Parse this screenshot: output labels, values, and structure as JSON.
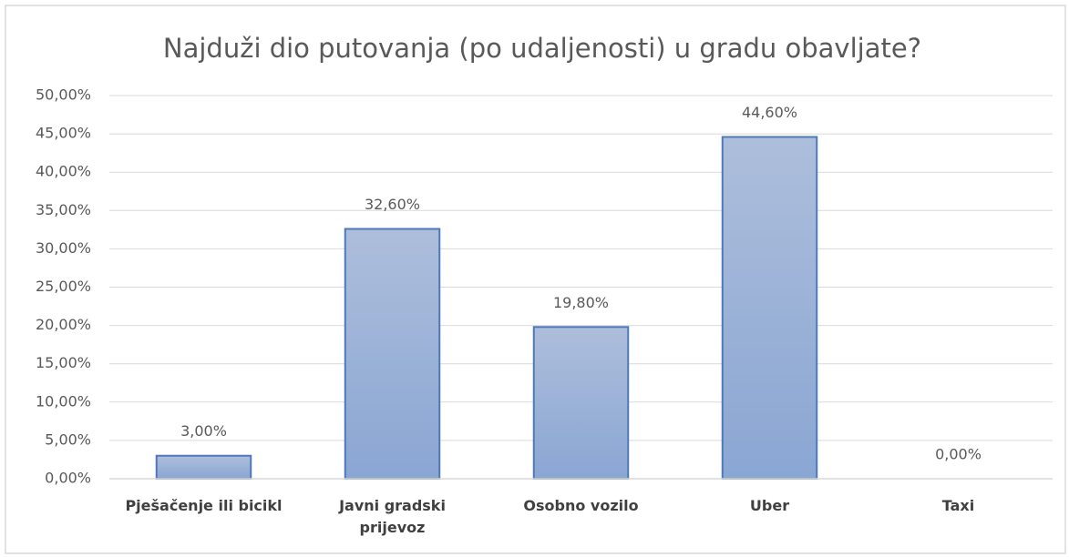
{
  "chart_data": {
    "type": "bar",
    "title": "Najduži dio putovanja (po udaljenosti) u gradu obavljate?",
    "categories": [
      "Pješačenje ili bicikl",
      "Javni gradski prijevoz",
      "Osobno vozilo",
      "Uber",
      "Taxi"
    ],
    "values": [
      3,
      32.6,
      19.8,
      44.6,
      0
    ],
    "value_labels": [
      "3,00%",
      "32,60%",
      "19,80%",
      "44,60%",
      "0,00%"
    ],
    "color": "#8faad6",
    "ylim": [
      0,
      50
    ],
    "yticks": [
      {
        "value": 0,
        "label": "0,00%"
      },
      {
        "value": 5,
        "label": "5,00%"
      },
      {
        "value": 10,
        "label": "10,00%"
      },
      {
        "value": 15,
        "label": "15,00%"
      },
      {
        "value": 20,
        "label": "20,00%"
      },
      {
        "value": 25,
        "label": "25,00%"
      },
      {
        "value": 30,
        "label": "30,00%"
      },
      {
        "value": 35,
        "label": "35,00%"
      },
      {
        "value": 40,
        "label": "40,00%"
      },
      {
        "value": 45,
        "label": "45,00%"
      },
      {
        "value": 50,
        "label": "50,00%"
      }
    ],
    "grid": true
  }
}
